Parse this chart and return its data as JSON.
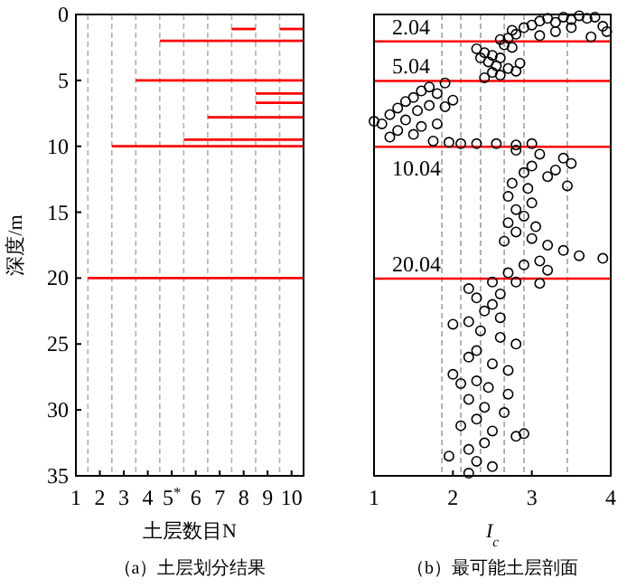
{
  "chart_data": [
    {
      "type": "line",
      "title": "（a）土层划分结果",
      "xlabel": "土层数目N",
      "ylabel": "深度/m",
      "xlim": [
        1,
        10.5
      ],
      "ylim": [
        35,
        0
      ],
      "xticks": [
        1,
        2,
        3,
        4,
        {
          "value": 5,
          "label": "5$^{*}$"
        },
        6,
        7,
        8,
        9,
        10
      ],
      "yticks": [
        0,
        5,
        10,
        15,
        20,
        25,
        30,
        35
      ],
      "line_style": "solid",
      "ref_lines": [
        {
          "axis": "x",
          "value": 1.5,
          "color": "#b0b0b0",
          "line_style": "dashed"
        },
        {
          "axis": "x",
          "value": 2.5,
          "color": "#b0b0b0",
          "line_style": "dashed"
        },
        {
          "axis": "x",
          "value": 3.5,
          "color": "#b0b0b0",
          "line_style": "dashed"
        },
        {
          "axis": "x",
          "value": 4.5,
          "color": "#b0b0b0",
          "line_style": "dashed"
        },
        {
          "axis": "x",
          "value": 5.5,
          "color": "#b0b0b0",
          "line_style": "dashed"
        },
        {
          "axis": "x",
          "value": 6.5,
          "color": "#b0b0b0",
          "line_style": "dashed"
        },
        {
          "axis": "x",
          "value": 7.5,
          "color": "#b0b0b0",
          "line_style": "dashed"
        },
        {
          "axis": "x",
          "value": 8.5,
          "color": "#b0b0b0",
          "line_style": "dashed"
        },
        {
          "axis": "x",
          "value": 9.5,
          "color": "#b0b0b0",
          "line_style": "dashed"
        }
      ],
      "series": [
        {
          "color": "#ff0000",
          "x": [
            1.5,
            10.5
          ],
          "values": [
            20,
            20
          ]
        },
        {
          "color": "#ff0000",
          "x": [
            2.5,
            10.5
          ],
          "values": [
            10,
            10
          ]
        },
        {
          "color": "#ff0000",
          "x": [
            5.5,
            10.5
          ],
          "values": [
            9.5,
            9.5
          ]
        },
        {
          "color": "#ff0000",
          "x": [
            3.5,
            10.5
          ],
          "values": [
            5,
            5
          ]
        },
        {
          "color": "#ff0000",
          "x": [
            4.5,
            10.5
          ],
          "values": [
            2,
            2
          ]
        },
        {
          "color": "#ff0000",
          "x": [
            6.5,
            10.5
          ],
          "values": [
            7.8,
            7.8
          ]
        },
        {
          "color": "#ff0000",
          "x": [
            8.5,
            10.5
          ],
          "values": [
            6,
            6
          ]
        },
        {
          "color": "#ff0000",
          "x": [
            8.5,
            10.5
          ],
          "values": [
            6.7,
            6.7
          ]
        },
        {
          "color": "#ff0000",
          "x": [
            7.5,
            8.5
          ],
          "values": [
            1.1,
            1.1
          ]
        },
        {
          "color": "#ff0000",
          "x": [
            9.5,
            10.5
          ],
          "values": [
            1.1,
            1.1
          ]
        }
      ]
    },
    {
      "type": "scatter",
      "title": "（b）最可能土层剖面",
      "xlabel": "I$_{c}$",
      "xlim": [
        1,
        4
      ],
      "ylim": [
        35,
        0
      ],
      "xticks": [
        1,
        2,
        3,
        4
      ],
      "tick_labels": "x",
      "marker": "circle",
      "ref_lines": [
        {
          "axis": "x",
          "value": 1.86,
          "color": "#a0a0a0",
          "line_style": "dashed"
        },
        {
          "axis": "x",
          "value": 2.1,
          "color": "#a0a0a0",
          "line_style": "dashed"
        },
        {
          "axis": "x",
          "value": 2.35,
          "color": "#a0a0a0",
          "line_style": "dashed"
        },
        {
          "axis": "x",
          "value": 2.65,
          "color": "#a0a0a0",
          "line_style": "dashed"
        },
        {
          "axis": "x",
          "value": 2.9,
          "color": "#a0a0a0",
          "line_style": "dashed"
        },
        {
          "axis": "x",
          "value": 3.45,
          "color": "#a0a0a0",
          "line_style": "dashed"
        },
        {
          "axis": "y",
          "value": 2.04,
          "label": "2.04",
          "color": "#ff0000",
          "line_style": "solid"
        },
        {
          "axis": "y",
          "value": 5.04,
          "label": "5.04",
          "color": "#ff0000",
          "line_style": "solid"
        },
        {
          "axis": "y",
          "value": 10.04,
          "label": "10.04",
          "color": "#ff0000",
          "line_style": "solid"
        },
        {
          "axis": "y",
          "value": 20.04,
          "label": "20.04",
          "color": "#ff0000",
          "line_style": "solid"
        }
      ],
      "series": [
        {
          "color": "#000000",
          "x": [
            2.7,
            2.8,
            2.75,
            2.9,
            3.0,
            3.1,
            3.2,
            3.3,
            3.4,
            3.5,
            3.6,
            3.7,
            3.8,
            3.9,
            3.95,
            3.3,
            3.1,
            2.6,
            3.5,
            3.75,
            2.3,
            2.4,
            2.5,
            2.6,
            2.45,
            2.55,
            2.7,
            2.8,
            2.6,
            2.4,
            2.65,
            2.85,
            2.35,
            2.5,
            2.75,
            1.9,
            1.7,
            1.6,
            1.8,
            1.5,
            1.4,
            1.7,
            1.3,
            1.55,
            1.9,
            1.2,
            1.0,
            1.1,
            1.4,
            1.6,
            1.3,
            1.5,
            1.2,
            1.8,
            2.0,
            1.75,
            1.95,
            2.1,
            2.3,
            2.55,
            2.8,
            3.0,
            2.8,
            3.1,
            3.4,
            3.5,
            3.0,
            2.9,
            3.2,
            2.75,
            2.95,
            2.7,
            3.0,
            2.8,
            2.9,
            2.7,
            3.05,
            2.8,
            3.0,
            3.2,
            3.4,
            3.6,
            3.9,
            3.1,
            2.9,
            3.2,
            2.7,
            3.3,
            2.65,
            3.45,
            2.5,
            2.8,
            3.1,
            2.2,
            2.3,
            2.5,
            2.4,
            2.6,
            2.2,
            2.0,
            2.35,
            2.6,
            2.8,
            2.3,
            2.2,
            2.5,
            2.7,
            2.0,
            2.3,
            2.45,
            2.7,
            2.2,
            2.4,
            2.65,
            2.3,
            2.1,
            2.5,
            2.8,
            2.4,
            2.2,
            1.95,
            2.3,
            2.5,
            2.2,
            2.6,
            2.1,
            2.9
          ],
          "values": [
            1.8,
            1.5,
            1.2,
            1.0,
            0.8,
            0.5,
            0.3,
            0.6,
            0.2,
            0.4,
            0.1,
            0.3,
            0.2,
            0.9,
            1.3,
            1.3,
            1.6,
            1.9,
            1.0,
            1.7,
            2.6,
            2.9,
            3.1,
            3.3,
            3.6,
            3.9,
            4.1,
            4.3,
            4.6,
            4.8,
            2.3,
            3.7,
            3.3,
            4.4,
            2.5,
            5.2,
            5.5,
            5.8,
            6.0,
            6.3,
            6.6,
            6.9,
            7.1,
            7.3,
            7.0,
            7.6,
            8.1,
            8.3,
            8.0,
            8.5,
            8.8,
            9.1,
            9.3,
            8.3,
            6.5,
            9.6,
            9.7,
            9.8,
            9.8,
            9.8,
            9.9,
            9.8,
            10.3,
            10.6,
            10.9,
            11.3,
            11.5,
            12.0,
            12.3,
            12.8,
            13.2,
            13.8,
            14.3,
            14.8,
            15.3,
            15.8,
            16.1,
            16.5,
            17.0,
            17.5,
            17.9,
            18.3,
            18.5,
            18.7,
            19.0,
            19.4,
            19.6,
            11.8,
            17.2,
            13.0,
            20.3,
            20.3,
            20.4,
            20.8,
            21.5,
            22.0,
            22.5,
            23.0,
            23.3,
            23.5,
            24.0,
            24.5,
            25.0,
            25.5,
            26.0,
            26.5,
            27.0,
            27.3,
            27.8,
            28.3,
            28.8,
            29.2,
            29.8,
            30.2,
            30.7,
            31.2,
            31.6,
            32.0,
            32.5,
            33.0,
            33.5,
            33.9,
            34.3,
            34.8,
            21.2,
            28.0,
            31.8
          ]
        }
      ]
    }
  ]
}
